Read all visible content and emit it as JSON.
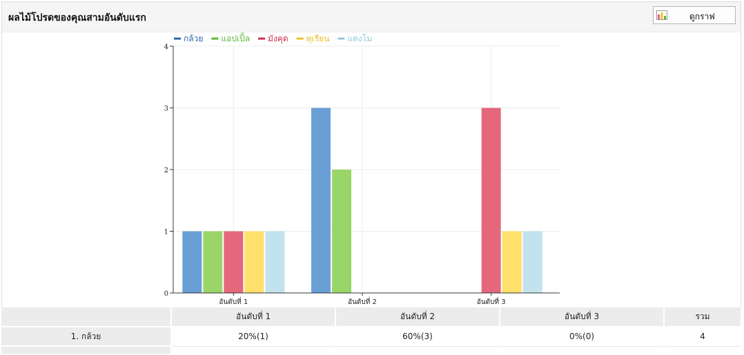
{
  "header": {
    "title": "ผลไม้โปรดของคุณสามอันดับแรก",
    "view_chart_label": "ดูกราฟ"
  },
  "colors": {
    "กล้วย": "#6a9fd6",
    "แอปเปิ้ล": "#99d569",
    "มังคุด": "#e5677b",
    "ทุเรียน": "#ffe06a",
    "แตงโม": "#c2e2ed"
  },
  "chart_data": {
    "type": "bar",
    "categories": [
      "อันดับที่ 1",
      "อันดับที่ 2",
      "อันดับที่ 3"
    ],
    "series": [
      {
        "name": "กล้วย",
        "values": [
          1,
          3,
          0
        ],
        "legend_color": "#2a63ac"
      },
      {
        "name": "แอปเปิ้ล",
        "values": [
          1,
          2,
          0
        ],
        "legend_color": "#5cb83a"
      },
      {
        "name": "มังคุด",
        "values": [
          1,
          0,
          3
        ],
        "legend_color": "#d0304a"
      },
      {
        "name": "ทุเรียน",
        "values": [
          1,
          0,
          1
        ],
        "legend_color": "#e8c228"
      },
      {
        "name": "แตงโม",
        "values": [
          1,
          0,
          1
        ],
        "legend_color": "#93c8da"
      }
    ],
    "yticks": [
      0,
      1,
      2,
      3,
      4
    ],
    "ylim": [
      0,
      4
    ],
    "legend_position": "top",
    "grid": true
  },
  "table": {
    "columns": [
      "อันดับที่ 1",
      "อันดับที่ 2",
      "อันดับที่ 3",
      "รวม"
    ],
    "rows": [
      {
        "label": "1. กล้วย",
        "cells": [
          "20%(1)",
          "60%(3)",
          "0%(0)",
          "4"
        ]
      }
    ]
  }
}
